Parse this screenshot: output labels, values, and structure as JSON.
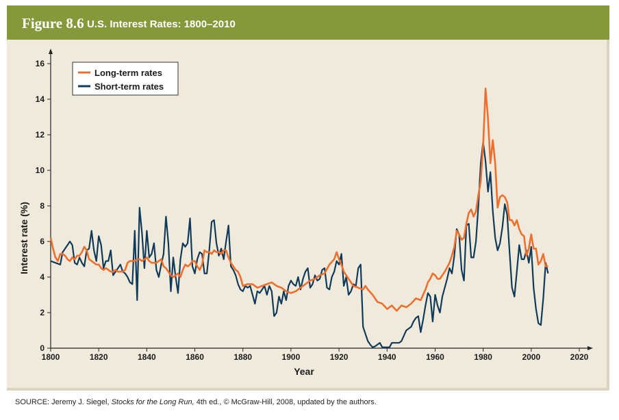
{
  "header": {
    "figure_label": "Figure 8.6",
    "title": "U.S. Interest Rates: 1800–2010"
  },
  "source": {
    "prefix": "SOURCE: Jeremy J. Siegel, ",
    "book": "Stocks for the Long Run,",
    "suffix": " 4th ed., © McGraw-Hill, 2008, updated by the authors."
  },
  "colors": {
    "header_bg": "#86993a",
    "panel_bg": "#efeadb",
    "long_term": "#ee6f2d",
    "short_term": "#0f3a5a"
  },
  "chart_data": {
    "type": "line",
    "xlabel": "Year",
    "ylabel": "Interest rate (%)",
    "xlim": [
      1800,
      2020
    ],
    "ylim": [
      0,
      16
    ],
    "x_ticks": [
      "1800",
      "1820",
      "1840",
      "1860",
      "1880",
      "1900",
      "1920",
      "1940",
      "1960",
      "1980",
      "2000",
      "2020"
    ],
    "y_ticks": [
      "0",
      "2",
      "4",
      "6",
      "8",
      "10",
      "12",
      "14",
      "16"
    ],
    "grid": false,
    "legend_position": "top-left",
    "series": [
      {
        "name": "Long-term rates",
        "color": "#ee6f2d",
        "x": [
          1800,
          1801,
          1802,
          1803,
          1804,
          1805,
          1806,
          1807,
          1808,
          1809,
          1810,
          1811,
          1812,
          1813,
          1814,
          1815,
          1816,
          1817,
          1818,
          1819,
          1820,
          1821,
          1822,
          1823,
          1824,
          1825,
          1826,
          1827,
          1828,
          1829,
          1830,
          1831,
          1832,
          1833,
          1834,
          1835,
          1836,
          1837,
          1838,
          1839,
          1840,
          1841,
          1842,
          1843,
          1844,
          1845,
          1846,
          1847,
          1848,
          1849,
          1850,
          1851,
          1852,
          1853,
          1854,
          1855,
          1856,
          1857,
          1858,
          1859,
          1860,
          1861,
          1862,
          1863,
          1864,
          1865,
          1866,
          1867,
          1868,
          1869,
          1870,
          1871,
          1872,
          1873,
          1874,
          1875,
          1876,
          1877,
          1878,
          1879,
          1880,
          1882,
          1884,
          1886,
          1888,
          1890,
          1892,
          1894,
          1896,
          1898,
          1900,
          1902,
          1904,
          1906,
          1908,
          1910,
          1912,
          1914,
          1916,
          1918,
          1919,
          1920,
          1921,
          1922,
          1924,
          1926,
          1928,
          1930,
          1931,
          1932,
          1934,
          1936,
          1938,
          1940,
          1942,
          1944,
          1946,
          1948,
          1950,
          1952,
          1954,
          1956,
          1957,
          1958,
          1959,
          1960,
          1961,
          1962,
          1964,
          1966,
          1967,
          1968,
          1969,
          1970,
          1971,
          1972,
          1973,
          1974,
          1975,
          1976,
          1977,
          1978,
          1979,
          1980,
          1981,
          1982,
          1983,
          1984,
          1985,
          1986,
          1987,
          1988,
          1989,
          1990,
          1991,
          1992,
          1993,
          1994,
          1995,
          1996,
          1997,
          1998,
          1999,
          2000,
          2001,
          2002,
          2003,
          2004,
          2005,
          2006,
          2007
        ],
        "values": [
          6.2,
          5.6,
          5.1,
          4.9,
          5.3,
          5.3,
          5.2,
          5.0,
          4.9,
          5.1,
          5.0,
          5.2,
          5.2,
          5.4,
          5.7,
          5.5,
          5.0,
          4.9,
          4.8,
          4.7,
          4.7,
          4.5,
          4.4,
          4.5,
          4.4,
          4.3,
          4.3,
          4.4,
          4.3,
          4.3,
          4.3,
          4.4,
          4.8,
          4.9,
          4.9,
          4.9,
          5.0,
          5.0,
          4.9,
          5.0,
          5.1,
          4.9,
          4.8,
          4.8,
          4.8,
          4.9,
          5.0,
          4.6,
          4.5,
          4.3,
          4.1,
          4.0,
          4.1,
          4.2,
          4.0,
          4.4,
          4.7,
          4.6,
          4.7,
          4.9,
          4.9,
          4.6,
          4.4,
          4.7,
          5.5,
          5.4,
          5.4,
          5.3,
          5.5,
          5.4,
          5.4,
          5.3,
          5.5,
          5.5,
          5.1,
          4.8,
          4.6,
          4.4,
          4.3,
          4.0,
          3.5,
          3.6,
          3.6,
          3.4,
          3.5,
          3.6,
          3.7,
          3.5,
          3.4,
          3.2,
          3.1,
          3.2,
          3.4,
          3.6,
          3.8,
          3.9,
          4.1,
          4.2,
          4.7,
          5.0,
          5.4,
          5.0,
          4.7,
          4.3,
          3.9,
          3.5,
          3.4,
          3.3,
          3.5,
          3.3,
          3.0,
          2.6,
          2.5,
          2.2,
          2.4,
          2.1,
          2.4,
          2.3,
          2.5,
          2.8,
          2.7,
          3.3,
          3.7,
          3.9,
          4.2,
          4.1,
          3.9,
          3.9,
          4.3,
          4.8,
          5.2,
          5.7,
          6.6,
          6.4,
          6.1,
          6.2,
          7.0,
          7.6,
          7.8,
          7.4,
          7.7,
          8.6,
          9.4,
          11.4,
          14.6,
          12.9,
          10.4,
          11.7,
          10.4,
          7.9,
          8.5,
          8.6,
          8.5,
          8.2,
          7.2,
          7.2,
          6.9,
          7.2,
          6.7,
          6.4,
          6.3,
          5.2,
          5.6,
          6.4,
          5.6,
          5.6,
          4.7,
          4.9,
          5.3,
          4.6,
          4.6
        ],
        "note": ""
      },
      {
        "name": "Short-term rates",
        "color": "#0f3a5a",
        "x": [
          1800,
          1802,
          1804,
          1805,
          1806,
          1807,
          1808,
          1809,
          1810,
          1811,
          1812,
          1813,
          1814,
          1815,
          1816,
          1817,
          1818,
          1819,
          1820,
          1821,
          1822,
          1823,
          1824,
          1825,
          1826,
          1827,
          1828,
          1829,
          1830,
          1831,
          1832,
          1833,
          1834,
          1835,
          1836,
          1837,
          1838,
          1839,
          1840,
          1841,
          1842,
          1843,
          1844,
          1845,
          1846,
          1847,
          1848,
          1849,
          1850,
          1851,
          1852,
          1853,
          1854,
          1855,
          1856,
          1857,
          1858,
          1859,
          1860,
          1861,
          1862,
          1863,
          1864,
          1865,
          1866,
          1867,
          1868,
          1869,
          1870,
          1871,
          1872,
          1873,
          1874,
          1875,
          1876,
          1877,
          1878,
          1879,
          1880,
          1881,
          1882,
          1883,
          1884,
          1885,
          1886,
          1887,
          1888,
          1889,
          1890,
          1891,
          1892,
          1893,
          1894,
          1895,
          1896,
          1897,
          1898,
          1899,
          1900,
          1901,
          1902,
          1903,
          1904,
          1905,
          1906,
          1907,
          1908,
          1909,
          1910,
          1911,
          1912,
          1913,
          1914,
          1915,
          1916,
          1917,
          1918,
          1919,
          1920,
          1921,
          1922,
          1923,
          1924,
          1925,
          1926,
          1927,
          1928,
          1929,
          1930,
          1931,
          1932,
          1933,
          1934,
          1935,
          1936,
          1937,
          1938,
          1939,
          1940,
          1941,
          1942,
          1943,
          1944,
          1945,
          1946,
          1947,
          1948,
          1949,
          1950,
          1951,
          1952,
          1953,
          1954,
          1955,
          1956,
          1957,
          1958,
          1959,
          1960,
          1961,
          1962,
          1963,
          1964,
          1965,
          1966,
          1967,
          1968,
          1969,
          1970,
          1971,
          1972,
          1973,
          1974,
          1975,
          1976,
          1977,
          1978,
          1979,
          1980,
          1981,
          1982,
          1983,
          1984,
          1985,
          1986,
          1987,
          1988,
          1989,
          1990,
          1991,
          1992,
          1993,
          1994,
          1995,
          1996,
          1997,
          1998,
          1999,
          2000,
          2001,
          2002,
          2003,
          2004,
          2005,
          2006,
          2007
        ],
        "values": [
          4.9,
          4.8,
          4.7,
          5.4,
          5.6,
          5.8,
          6.0,
          5.8,
          4.8,
          4.7,
          5.1,
          4.8,
          4.6,
          5.5,
          5.6,
          6.6,
          5.5,
          4.9,
          6.3,
          5.8,
          4.5,
          4.9,
          4.9,
          5.5,
          4.1,
          4.3,
          4.5,
          4.7,
          4.3,
          4.2,
          4.0,
          3.7,
          3.6,
          6.6,
          2.7,
          7.9,
          6.5,
          4.5,
          6.6,
          5.1,
          5.3,
          5.9,
          4.4,
          4.0,
          4.7,
          5.3,
          7.4,
          5.9,
          3.2,
          5.1,
          4.0,
          3.1,
          5.0,
          5.9,
          5.7,
          5.9,
          7.3,
          4.6,
          4.2,
          5.0,
          5.4,
          5.3,
          4.2,
          4.2,
          5.5,
          7.1,
          7.2,
          5.9,
          5.2,
          5.6,
          5.0,
          6.0,
          6.9,
          4.6,
          4.4,
          4.1,
          3.6,
          3.3,
          3.2,
          3.5,
          3.4,
          3.5,
          3.0,
          2.5,
          3.2,
          3.1,
          3.3,
          3.5,
          3.0,
          3.5,
          3.2,
          1.8,
          2.0,
          2.9,
          2.5,
          3.2,
          2.7,
          3.5,
          3.8,
          3.6,
          3.5,
          4.0,
          3.3,
          3.9,
          4.3,
          4.5,
          3.4,
          3.6,
          4.1,
          3.8,
          3.9,
          4.4,
          4.5,
          3.4,
          3.3,
          4.0,
          4.3,
          4.9,
          4.7,
          5.3,
          3.5,
          4.0,
          3.0,
          3.2,
          3.6,
          3.5,
          4.5,
          4.7,
          1.2,
          0.8,
          0.4,
          0.2,
          0.05,
          0.1,
          0.2,
          0.3,
          0.05,
          0.05,
          0.05,
          0.05,
          0.3,
          0.3,
          0.3,
          0.3,
          0.4,
          0.7,
          1.0,
          1.1,
          1.2,
          1.5,
          1.7,
          1.8,
          0.9,
          1.6,
          2.4,
          3.1,
          2.9,
          1.5,
          3.0,
          2.4,
          2.0,
          2.9,
          3.4,
          3.9,
          4.5,
          4.2,
          5.2,
          6.7,
          6.4,
          4.4,
          3.8,
          6.9,
          7.0,
          5.1,
          5.1,
          6.0,
          8.0,
          10.4,
          11.6,
          10.5,
          8.8,
          9.9,
          7.7,
          6.2,
          5.5,
          5.9,
          6.8,
          8.1,
          7.5,
          5.4,
          3.4,
          2.9,
          4.3,
          5.8,
          5.0,
          5.0,
          5.5,
          4.8,
          5.7,
          3.4,
          2.2,
          1.4,
          1.3,
          2.8,
          4.8,
          4.2
        ],
        "note": ""
      }
    ]
  }
}
